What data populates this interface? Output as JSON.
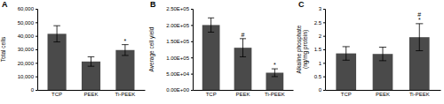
{
  "chart_data": [
    {
      "type": "bar",
      "title": "A",
      "ylabel": "Total cells",
      "categories": [
        "TCP",
        "PEEK",
        "Ti-PEEK"
      ],
      "values": [
        41500,
        21000,
        29500
      ],
      "errors": [
        6000,
        3500,
        4000
      ],
      "color": "#4a4a4a",
      "ylim": [
        0,
        60000
      ],
      "yticks": [
        0,
        {
          "value": 10000,
          "label": "10,000"
        },
        {
          "value": 20000,
          "label": "20,000"
        },
        {
          "value": 30000,
          "label": "30,000"
        },
        {
          "value": 40000,
          "label": "40,000"
        },
        {
          "value": 50000,
          "label": "50,000"
        },
        {
          "value": 60000,
          "label": "60,000"
        }
      ],
      "annotations": [
        {
          "text": "*",
          "category": "Ti-PEEK"
        }
      ]
    },
    {
      "type": "bar",
      "title": "B",
      "ylabel": "Average cell yield",
      "categories": [
        "TCP",
        "PEEK",
        "Ti-PEEK"
      ],
      "values": [
        200000,
        130000,
        53000
      ],
      "errors": [
        22000,
        28000,
        12000
      ],
      "color": "#4a4a4a",
      "ylim": [
        0,
        250000
      ],
      "yticks": [
        {
          "value": 0,
          "label": "0.00E+00"
        },
        {
          "value": 50000,
          "label": "5.00E+04"
        },
        {
          "value": 100000,
          "label": "1.00E+05"
        },
        {
          "value": 150000,
          "label": "1.50E+05"
        },
        {
          "value": 200000,
          "label": "2.00E+05"
        },
        {
          "value": 250000,
          "label": "2.50E+05"
        }
      ],
      "annotations": [
        {
          "text": "#",
          "category": "PEEK"
        },
        {
          "text": "*",
          "category": "Ti-PEEK"
        }
      ]
    },
    {
      "type": "bar",
      "title": "C",
      "ylabel": "Alkaline phosphate (ng/mg protein)",
      "categories": [
        "TCP",
        "PEEK",
        "Ti-PEEK"
      ],
      "values": [
        1.35,
        1.33,
        1.95
      ],
      "errors": [
        0.25,
        0.25,
        0.5
      ],
      "color": "#4a4a4a",
      "ylim": [
        0,
        3
      ],
      "yticks": [
        0,
        0.5,
        1,
        1.5,
        2,
        2.5,
        3
      ],
      "annotations": [
        {
          "text": "*",
          "category": "Ti-PEEK"
        },
        {
          "text": "#",
          "category": "Ti-PEEK"
        }
      ]
    }
  ]
}
